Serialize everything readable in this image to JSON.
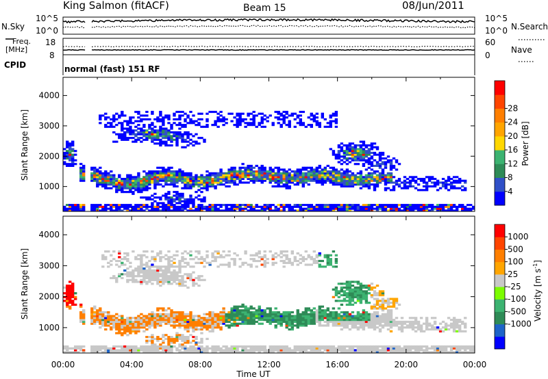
{
  "header": {
    "title": "King Salmon (fitACF)",
    "beam": "Beam 15",
    "date": "08/Jun/2011",
    "cpid_label": "CPID",
    "cpid_text": "normal (fast) 151 RF"
  },
  "noise_panel": {
    "left_label": "N.Sky",
    "right_label": "N.Search",
    "left_ticks": [
      "10^5",
      "10^0"
    ],
    "right_ticks": [
      "10^5",
      "10^0"
    ]
  },
  "freq_panel": {
    "left_label_1": "Freq.",
    "left_label_2": "[MHz]",
    "right_label": "Nave",
    "left_ticks": [
      "18",
      "8"
    ],
    "right_ticks": [
      "60",
      "0"
    ]
  },
  "chart_data": [
    {
      "type": "heatmap",
      "name": "power",
      "ylabel": "Slant Range [km]",
      "yticks": [
        1000,
        2000,
        3000,
        4000
      ],
      "ylim": [
        180,
        4600
      ],
      "xlim_hours": [
        0,
        24
      ],
      "colorbar_label": "Power [dB]",
      "colorbar_ticks": [
        "4",
        "8",
        "12",
        "16",
        "20",
        "24",
        "28"
      ],
      "colors": [
        "#0000ff",
        "#3050c8",
        "#2e8b57",
        "#3cb371",
        "#ffd700",
        "#ffa500",
        "#ff7f00",
        "#ff4500",
        "#ff0000"
      ]
    },
    {
      "type": "heatmap",
      "name": "velocity",
      "ylabel": "Slant Range [km]",
      "yticks": [
        1000,
        2000,
        3000,
        4000
      ],
      "ylim": [
        180,
        4600
      ],
      "xlim_hours": [
        0,
        24
      ],
      "xlabel": "Time UT",
      "xticks": [
        "00:00",
        "04:00",
        "08:00",
        "12:00",
        "16:00",
        "20:00",
        "00:00"
      ],
      "colorbar_label": "Velocity [m s",
      "colorbar_label_sup": "-1",
      "colorbar_label_tail": "]",
      "colorbar_ticks": [
        "1000",
        "500",
        "100",
        "25",
        "-25",
        "-100",
        "-500",
        "-1000"
      ],
      "colors": [
        "#0000ff",
        "#1e64c8",
        "#2e8b57",
        "#3cb371",
        "#7cfc00",
        "#c8c8c8",
        "#ffa500",
        "#ff7f00",
        "#ff4500",
        "#ff0000"
      ]
    }
  ]
}
